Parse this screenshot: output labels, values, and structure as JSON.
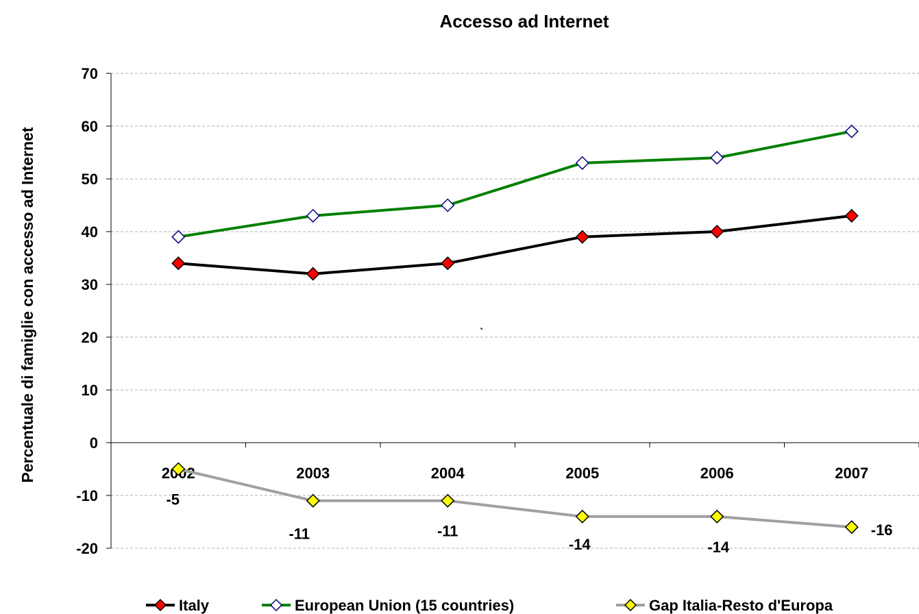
{
  "chart_data": {
    "type": "line",
    "title": "Accesso ad Internet",
    "xlabel": "",
    "ylabel": "Percentuale di famiglie con accesso ad Internet",
    "categories": [
      "2002",
      "2003",
      "2004",
      "2005",
      "2006",
      "2007"
    ],
    "ylim": [
      -20,
      70
    ],
    "yticks": [
      "70",
      "60",
      "50",
      "40",
      "30",
      "20",
      "10",
      "0",
      "-10",
      "-20"
    ],
    "grid": true,
    "legend_position": "bottom",
    "stray_mark": "`",
    "series": [
      {
        "name": "Italy",
        "values": [
          34,
          32,
          34,
          39,
          40,
          43
        ],
        "line_color": "#000000",
        "marker": "diamond",
        "marker_fill": "#ff0000",
        "marker_stroke": "#000000",
        "labels": []
      },
      {
        "name": "European Union (15 countries)",
        "values": [
          39,
          43,
          45,
          53,
          54,
          59
        ],
        "line_color": "#008000",
        "marker": "diamond",
        "marker_fill": "#ffffff",
        "marker_stroke": "#000080",
        "labels": []
      },
      {
        "name": "Gap Italia-Resto d'Europa",
        "values": [
          -5,
          -11,
          -11,
          -14,
          -14,
          -16
        ],
        "line_color": "#a0a0a0",
        "marker": "diamond",
        "marker_fill": "#ffff00",
        "marker_stroke": "#000000",
        "labels": [
          "-5",
          "-11",
          "-11",
          "-14",
          "-14",
          "-16"
        ]
      }
    ]
  }
}
